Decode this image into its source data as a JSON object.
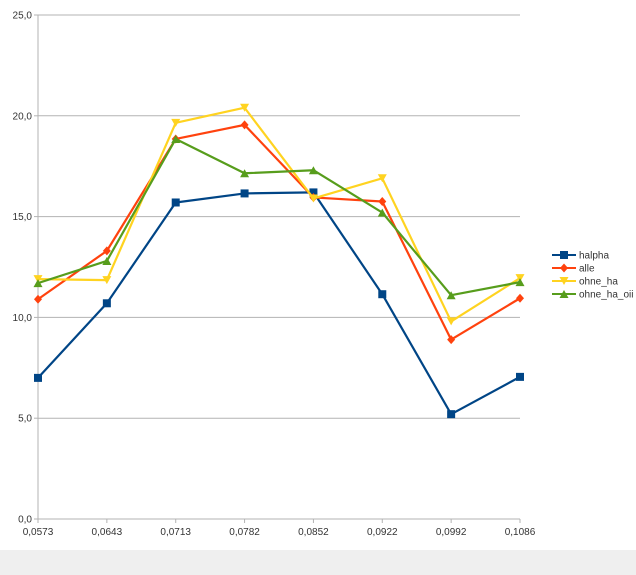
{
  "chart_data": {
    "type": "line",
    "title": "",
    "xlabel": "",
    "ylabel": "",
    "categories": [
      "0,0573",
      "0,0643",
      "0,0713",
      "0,0782",
      "0,0852",
      "0,0922",
      "0,0992",
      "0,1086"
    ],
    "y_ticks": [
      "0,0",
      "5,0",
      "10,0",
      "15,0",
      "20,0",
      "25,0"
    ],
    "ylim": [
      0,
      25
    ],
    "grid": "horizontal",
    "legend_position": "right",
    "series": [
      {
        "name": "halpha",
        "color": "#004586",
        "marker": "square",
        "values": [
          7.0,
          10.7,
          15.7,
          16.15,
          16.2,
          11.15,
          5.2,
          7.05
        ]
      },
      {
        "name": "alle",
        "color": "#ff420e",
        "marker": "diamond",
        "values": [
          10.9,
          13.3,
          18.85,
          19.55,
          15.95,
          15.75,
          8.9,
          10.95
        ]
      },
      {
        "name": "ohne_ha",
        "color": "#ffd320",
        "marker": "triangle-down",
        "values": [
          11.9,
          11.85,
          19.65,
          20.4,
          15.9,
          16.9,
          9.8,
          11.95
        ]
      },
      {
        "name": "ohne_ha_oii",
        "color": "#579d1c",
        "marker": "triangle-up",
        "values": [
          11.7,
          12.8,
          18.85,
          17.15,
          17.3,
          15.2,
          11.1,
          11.75
        ]
      }
    ]
  }
}
